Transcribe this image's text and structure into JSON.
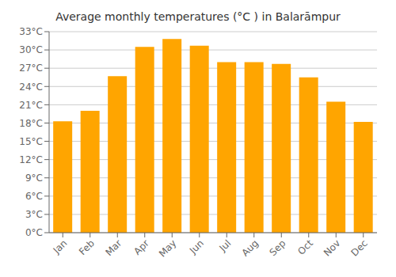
{
  "chart_data": {
    "type": "bar",
    "title": "Average monthly temperatures (°C ) in Balarāmpur",
    "categories": [
      "Jan",
      "Feb",
      "Mar",
      "Apr",
      "May",
      "Jun",
      "Jul",
      "Aug",
      "Sep",
      "Oct",
      "Nov",
      "Dec"
    ],
    "values": [
      18.3,
      20.0,
      25.7,
      30.5,
      31.8,
      30.7,
      28.0,
      28.0,
      27.7,
      25.5,
      21.5,
      18.2
    ],
    "color": "#FFA500",
    "ylim": [
      0,
      33
    ],
    "yticks": [
      {
        "value": 0,
        "label": "0°C"
      },
      {
        "value": 3,
        "label": "3°C"
      },
      {
        "value": 6,
        "label": "6°C"
      },
      {
        "value": 9,
        "label": "9°C"
      },
      {
        "value": 12,
        "label": "12°C"
      },
      {
        "value": 15,
        "label": "15°C"
      },
      {
        "value": 18,
        "label": "18°C"
      },
      {
        "value": 21,
        "label": "21°C"
      },
      {
        "value": 24,
        "label": "24°C"
      },
      {
        "value": 27,
        "label": "27°C"
      },
      {
        "value": 30,
        "label": "30°C"
      },
      {
        "value": 33,
        "label": "33°C"
      }
    ],
    "grid": true
  }
}
